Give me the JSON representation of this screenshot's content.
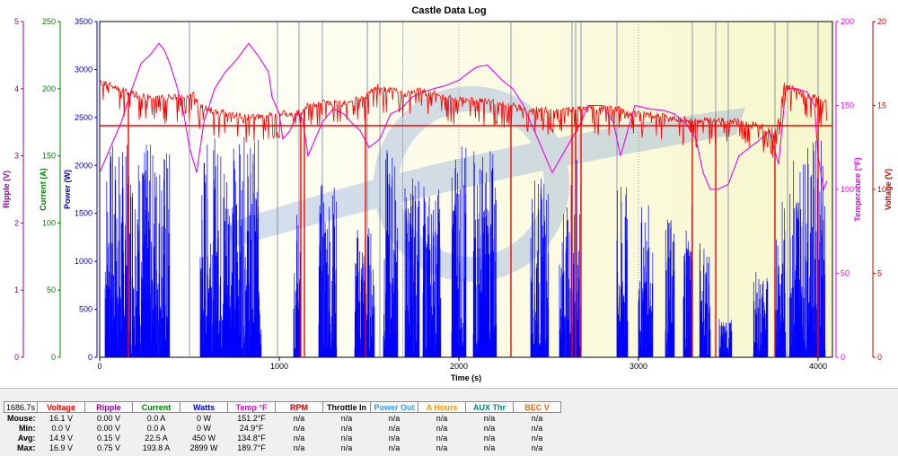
{
  "chart_data": {
    "type": "line",
    "title": "Castle Data Log",
    "xlabel": "Time (s)",
    "xlim": [
      0,
      4080
    ],
    "x_ticks": [
      0,
      1000,
      2000,
      3000,
      4000
    ],
    "grid": false,
    "left_axes": [
      {
        "key": "ripple",
        "label": "Ripple (V)",
        "color": "#990099",
        "min": 0,
        "max": 5,
        "ticks": [
          0,
          1,
          2,
          3,
          4,
          5
        ]
      },
      {
        "key": "current",
        "label": "Current (A)",
        "color": "#008000",
        "min": 0,
        "max": 250,
        "ticks": [
          0,
          50,
          100,
          150,
          200,
          250
        ]
      },
      {
        "key": "power",
        "label": "Power (W)",
        "color": "#0000cc",
        "min": 0,
        "max": 3500,
        "ticks": [
          0,
          500,
          1000,
          1500,
          2000,
          2500,
          3000,
          3500
        ]
      }
    ],
    "right_axes": [
      {
        "key": "temp",
        "label": "Temperature (°F)",
        "color": "#ee00ee",
        "min": 0,
        "max": 200,
        "ticks": [
          0,
          50,
          100,
          150,
          200
        ]
      },
      {
        "key": "voltage",
        "label": "Voltage (V)",
        "color": "#cc0000",
        "min": 0,
        "max": 20,
        "ticks": [
          0,
          5,
          10,
          15,
          20
        ]
      }
    ],
    "cursor_time": 1686.7,
    "series": [
      {
        "name": "Voltage",
        "axis": "voltage",
        "color": "#ff0000",
        "points": [
          [
            0,
            16.4
          ],
          [
            80,
            16.1
          ],
          [
            180,
            15.7
          ],
          [
            300,
            15.4
          ],
          [
            440,
            15.5
          ],
          [
            500,
            15.5
          ],
          [
            520,
            15.7
          ],
          [
            560,
            14.9
          ],
          [
            700,
            14.5
          ],
          [
            830,
            14.3
          ],
          [
            950,
            14.4
          ],
          [
            1000,
            14.6
          ],
          [
            1060,
            14.4
          ],
          [
            1130,
            14.6
          ],
          [
            1160,
            15
          ],
          [
            1220,
            15.2
          ],
          [
            1300,
            15.1
          ],
          [
            1400,
            15.3
          ],
          [
            1480,
            15.5
          ],
          [
            1540,
            16.1
          ],
          [
            1620,
            15.9
          ],
          [
            1700,
            15.7
          ],
          [
            1790,
            15.9
          ],
          [
            1900,
            15.6
          ],
          [
            2000,
            15.4
          ],
          [
            2120,
            15.3
          ],
          [
            2200,
            15.2
          ],
          [
            2300,
            15
          ],
          [
            2360,
            14.8
          ],
          [
            2500,
            14.7
          ],
          [
            2600,
            14.7
          ],
          [
            2680,
            14.8
          ],
          [
            2900,
            14.8
          ],
          [
            2940,
            14.6
          ],
          [
            3100,
            14.4
          ],
          [
            3300,
            14.1
          ],
          [
            3450,
            14.1
          ],
          [
            3560,
            14
          ],
          [
            3680,
            13.8
          ],
          [
            3770,
            13.4
          ],
          [
            3810,
            16.2
          ],
          [
            3900,
            15.8
          ],
          [
            4050,
            15.2
          ]
        ],
        "drops": [
          [
            290,
            12.8
          ],
          [
            580,
            12.6
          ],
          [
            930,
            12.7
          ],
          [
            1150,
            13.1
          ],
          [
            1630,
            13.6
          ],
          [
            1990,
            13.4
          ],
          [
            2440,
            13.3
          ],
          [
            2990,
            13
          ],
          [
            3410,
            12.9
          ],
          [
            3860,
            13.5
          ],
          [
            4000,
            13.3
          ]
        ]
      },
      {
        "name": "Temp °F",
        "axis": "temp",
        "color": "#ee00ee",
        "points": [
          [
            0,
            110
          ],
          [
            40,
            120
          ],
          [
            120,
            140
          ],
          [
            180,
            160
          ],
          [
            230,
            175
          ],
          [
            280,
            180
          ],
          [
            330,
            187
          ],
          [
            360,
            183
          ],
          [
            390,
            175
          ],
          [
            420,
            165
          ],
          [
            460,
            150
          ],
          [
            500,
            125
          ],
          [
            540,
            110
          ],
          [
            580,
            140
          ],
          [
            640,
            160
          ],
          [
            700,
            170
          ],
          [
            760,
            177
          ],
          [
            830,
            187
          ],
          [
            880,
            180
          ],
          [
            940,
            170
          ],
          [
            960,
            155
          ],
          [
            1000,
            145
          ],
          [
            1020,
            130
          ],
          [
            1060,
            135
          ],
          [
            1100,
            145
          ],
          [
            1130,
            142
          ],
          [
            1160,
            120
          ],
          [
            1240,
            140
          ],
          [
            1300,
            148
          ],
          [
            1360,
            145
          ],
          [
            1400,
            140
          ],
          [
            1450,
            135
          ],
          [
            1500,
            125
          ],
          [
            1560,
            130
          ],
          [
            1620,
            145
          ],
          [
            1680,
            148
          ],
          [
            1740,
            155
          ],
          [
            1800,
            158
          ],
          [
            1860,
            160
          ],
          [
            1930,
            162
          ],
          [
            2000,
            165
          ],
          [
            2060,
            170
          ],
          [
            2100,
            173
          ],
          [
            2160,
            174
          ],
          [
            2240,
            165
          ],
          [
            2300,
            160
          ],
          [
            2360,
            150
          ],
          [
            2440,
            130
          ],
          [
            2520,
            110
          ],
          [
            2600,
            125
          ],
          [
            2680,
            140
          ],
          [
            2720,
            150
          ],
          [
            2800,
            150
          ],
          [
            2860,
            140
          ],
          [
            2900,
            120
          ],
          [
            2980,
            150
          ],
          [
            3060,
            148
          ],
          [
            3140,
            147
          ],
          [
            3200,
            145
          ],
          [
            3260,
            140
          ],
          [
            3320,
            130
          ],
          [
            3360,
            110
          ],
          [
            3400,
            100
          ],
          [
            3440,
            100
          ],
          [
            3500,
            103
          ],
          [
            3560,
            120
          ],
          [
            3620,
            125
          ],
          [
            3680,
            130
          ],
          [
            3730,
            135
          ],
          [
            3780,
            115
          ],
          [
            3820,
            160
          ],
          [
            3880,
            160
          ],
          [
            3940,
            158
          ],
          [
            3980,
            150
          ],
          [
            4000,
            120
          ],
          [
            4030,
            100
          ],
          [
            4050,
            105
          ]
        ]
      },
      {
        "name": "Watts",
        "axis": "power",
        "color": "#0000ff",
        "bursts": [
          [
            30,
            390,
            2250
          ],
          [
            560,
            900,
            2300
          ],
          [
            1080,
            1120,
            1600
          ],
          [
            1220,
            1320,
            1850
          ],
          [
            1420,
            1530,
            1400
          ],
          [
            1580,
            1660,
            2200
          ],
          [
            1700,
            1780,
            1900
          ],
          [
            1800,
            1900,
            1800
          ],
          [
            1960,
            2040,
            2300
          ],
          [
            2080,
            2210,
            2200
          ],
          [
            2400,
            2500,
            1900
          ],
          [
            2560,
            2620,
            1600
          ],
          [
            2620,
            2680,
            2100
          ],
          [
            2880,
            2940,
            1800
          ],
          [
            3000,
            3080,
            1600
          ],
          [
            3150,
            3200,
            1500
          ],
          [
            3250,
            3300,
            1650
          ],
          [
            3340,
            3400,
            1300
          ],
          [
            3450,
            3520,
            400
          ],
          [
            3640,
            3720,
            900
          ],
          [
            3760,
            3820,
            1650
          ],
          [
            3840,
            3960,
            2200
          ],
          [
            3960,
            4040,
            2300
          ]
        ]
      }
    ]
  },
  "stats": {
    "time_readout": "1686.7s",
    "columns": [
      {
        "label": "Voltage",
        "color": "#ff0000",
        "mouse": "16.1 V",
        "min": "0.0 V",
        "avg": "14.9 V",
        "max": "16.9 V"
      },
      {
        "label": "Ripple",
        "color": "#990099",
        "mouse": "0.00 V",
        "min": "0.00 V",
        "avg": "0.15 V",
        "max": "0.75 V"
      },
      {
        "label": "Current",
        "color": "#008000",
        "mouse": "0.0 A",
        "min": "0.0 A",
        "avg": "22.5 A",
        "max": "193.8 A"
      },
      {
        "label": "Watts",
        "color": "#0000ff",
        "mouse": "0 W",
        "min": "0 W",
        "avg": "450 W",
        "max": "2899 W"
      },
      {
        "label": "Temp °F",
        "color": "#ee00ee",
        "mouse": "151.2°F",
        "min": "24.9°F",
        "avg": "134.8°F",
        "max": "189.7°F"
      },
      {
        "label": "RPM",
        "color": "#cc0000",
        "mouse": "n/a",
        "min": "n/a",
        "avg": "n/a",
        "max": "n/a"
      },
      {
        "label": "Throttle In",
        "color": "#000000",
        "mouse": "n/a",
        "min": "n/a",
        "avg": "n/a",
        "max": "n/a"
      },
      {
        "label": "Power Out",
        "color": "#3399ff",
        "mouse": "n/a",
        "min": "n/a",
        "avg": "n/a",
        "max": "n/a"
      },
      {
        "label": "A Hours",
        "color": "#ff9900",
        "mouse": "n/a",
        "min": "n/a",
        "avg": "n/a",
        "max": "n/a"
      },
      {
        "label": "AUX Thr",
        "color": "#008888",
        "mouse": "n/a",
        "min": "n/a",
        "avg": "n/a",
        "max": "n/a"
      },
      {
        "label": "BEC V",
        "color": "#ff6600",
        "mouse": "n/a",
        "min": "n/a",
        "avg": "n/a",
        "max": "n/a"
      }
    ],
    "row_labels": {
      "mouse": "Mouse:",
      "min": "Min:",
      "avg": "Avg:",
      "max": "Max:"
    }
  }
}
